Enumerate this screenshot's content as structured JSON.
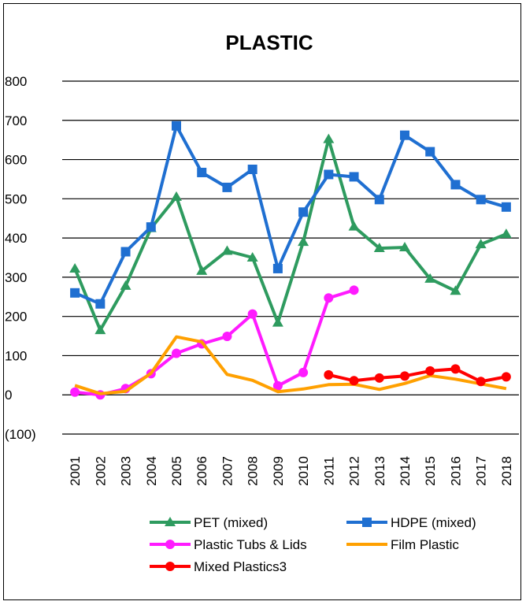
{
  "chart_data": {
    "type": "line",
    "title": "PLASTIC",
    "xlabel": "",
    "ylabel": "",
    "ylim": [
      -100,
      800
    ],
    "yticks": [
      -100,
      0,
      100,
      200,
      300,
      400,
      500,
      600,
      700,
      800
    ],
    "ytick_labels": [
      "(100)",
      "0",
      "100",
      "200",
      "300",
      "400",
      "500",
      "600",
      "700",
      "800"
    ],
    "categories": [
      "2001",
      "2002",
      "2003",
      "2004",
      "2005",
      "2006",
      "2007",
      "2008",
      "2009",
      "2010",
      "2011",
      "2012",
      "2013",
      "2014",
      "2015",
      "2016",
      "2017",
      "2018"
    ],
    "grid": "horizontal",
    "legend_position": "bottom",
    "series": [
      {
        "name": "PET (mixed)",
        "color": "#2e9b5f",
        "marker": "triangle",
        "values": [
          322,
          165,
          278,
          425,
          505,
          316,
          367,
          350,
          184,
          390,
          652,
          429,
          374,
          376,
          296,
          265,
          384,
          410
        ]
      },
      {
        "name": "HDPE (mixed)",
        "color": "#1f6fd1",
        "marker": "square",
        "values": [
          260,
          232,
          365,
          428,
          686,
          567,
          529,
          575,
          322,
          466,
          562,
          556,
          498,
          662,
          620,
          536,
          498,
          479
        ]
      },
      {
        "name": "Plastic Tubs & Lids",
        "color": "#ff1bff",
        "marker": "circle",
        "values": [
          7,
          0,
          16,
          54,
          106,
          130,
          149,
          206,
          23,
          57,
          247,
          267,
          null,
          null,
          null,
          null,
          null,
          null
        ]
      },
      {
        "name": "Film Plastic",
        "color": "#ffa000",
        "marker": "none",
        "values": [
          24,
          3,
          9,
          55,
          148,
          135,
          52,
          37,
          8,
          15,
          26,
          27,
          14,
          29,
          49,
          40,
          28,
          16
        ]
      },
      {
        "name": "Mixed Plastics3",
        "color": "#ff0000",
        "marker": "circle",
        "values": [
          null,
          null,
          null,
          null,
          null,
          null,
          null,
          null,
          null,
          null,
          51,
          36,
          43,
          48,
          61,
          66,
          34,
          46
        ]
      }
    ]
  }
}
